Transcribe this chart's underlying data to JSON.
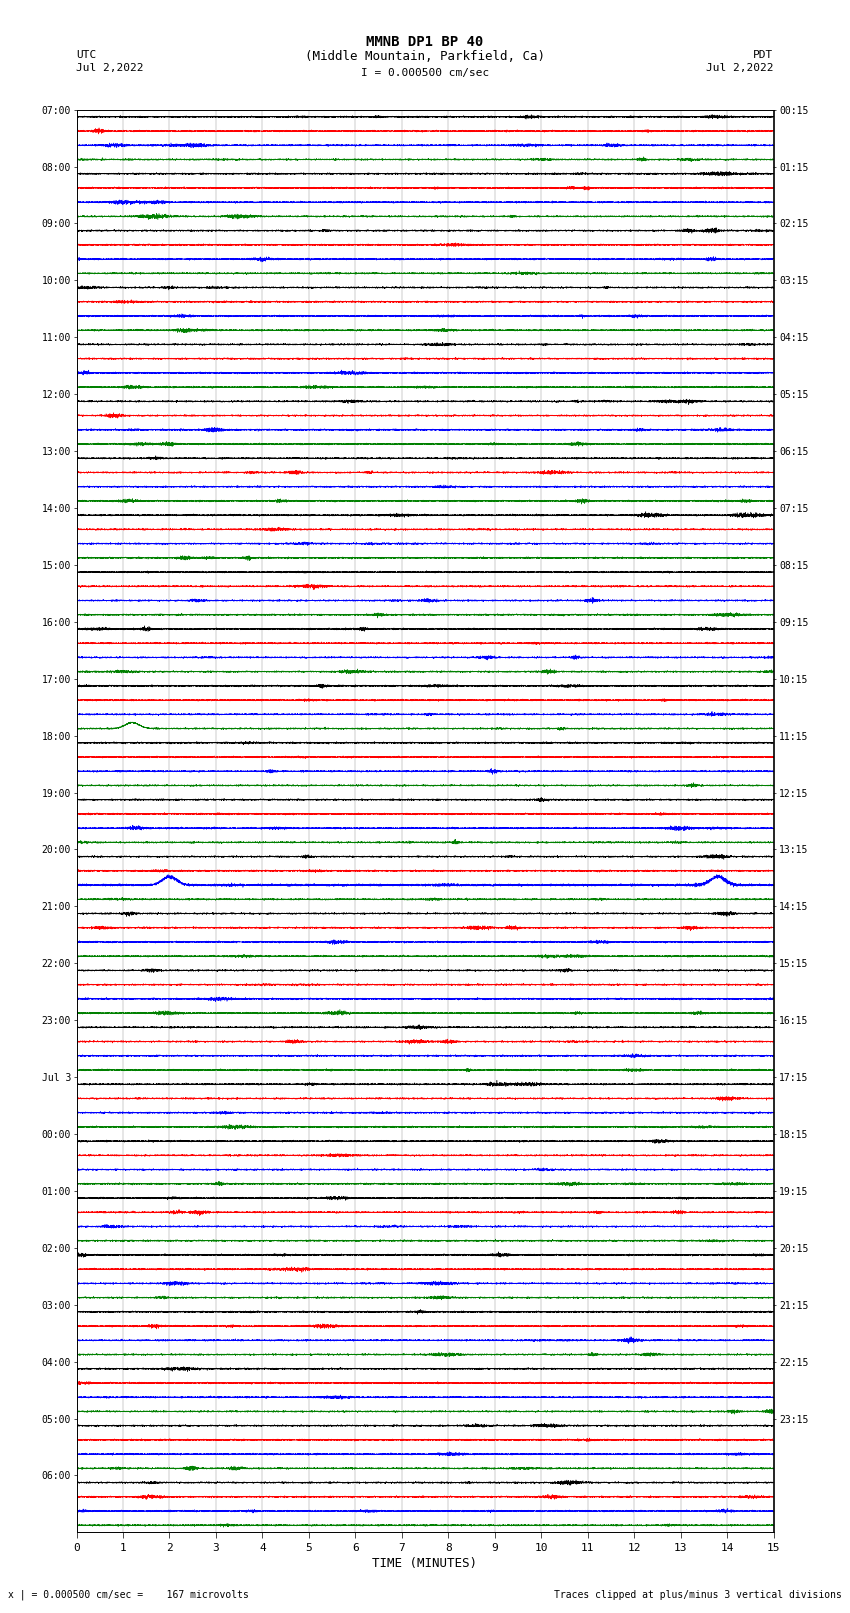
{
  "title_line1": "MMNB DP1 BP 40",
  "title_line2": "(Middle Mountain, Parkfield, Ca)",
  "scale_text": "I = 0.000500 cm/sec",
  "utc_label": "UTC",
  "pdt_label": "PDT",
  "date_left": "Jul 2,2022",
  "date_right": "Jul 2,2022",
  "xlabel": "TIME (MINUTES)",
  "footer_left": "x | = 0.000500 cm/sec =    167 microvolts",
  "footer_right": "Traces clipped at plus/minus 3 vertical divisions",
  "xlim": [
    0,
    15
  ],
  "xticks": [
    0,
    1,
    2,
    3,
    4,
    5,
    6,
    7,
    8,
    9,
    10,
    11,
    12,
    13,
    14,
    15
  ],
  "colors": [
    "black",
    "red",
    "blue",
    "green"
  ],
  "left_labels_text": [
    "07:00",
    "08:00",
    "09:00",
    "10:00",
    "11:00",
    "12:00",
    "13:00",
    "14:00",
    "15:00",
    "16:00",
    "17:00",
    "18:00",
    "19:00",
    "20:00",
    "21:00",
    "22:00",
    "23:00",
    "Jul 3",
    "00:00",
    "01:00",
    "02:00",
    "03:00",
    "04:00",
    "05:00",
    "06:00"
  ],
  "right_labels_text": [
    "00:15",
    "01:15",
    "02:15",
    "03:15",
    "04:15",
    "05:15",
    "06:15",
    "07:15",
    "08:15",
    "09:15",
    "10:15",
    "11:15",
    "12:15",
    "13:15",
    "14:15",
    "15:15",
    "16:15",
    "17:15",
    "18:15",
    "19:15",
    "20:15",
    "21:15",
    "22:15",
    "23:15"
  ],
  "bg_color": "#ffffff",
  "n_hours": 25,
  "n_colors": 4,
  "traces_per_hour": 4,
  "figsize": [
    8.5,
    16.13
  ],
  "dpi": 100,
  "green_spike_hour": 10,
  "green_spike_t": 1.2,
  "blue_spike_hour": 13,
  "blue_spike_t1": 2.0,
  "blue_spike_t2": 13.8
}
